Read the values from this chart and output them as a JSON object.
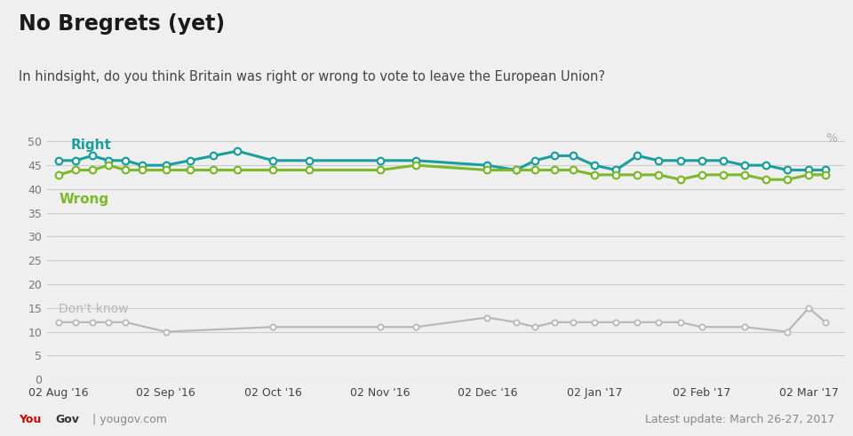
{
  "title": "No Bregrets (yet)",
  "subtitle": "In hindsight, do you think Britain was right or wrong to vote to leave the European Union?",
  "footer_right": "Latest update: March 26-27, 2017",
  "background_color": "#efefef",
  "plot_bg_color": "#efefef",
  "right_color": "#1a9e9e",
  "wrong_color": "#7db82a",
  "dontknow_color": "#b8b8b8",
  "x_labels": [
    "02 Aug '16",
    "02 Sep '16",
    "02 Oct '16",
    "02 Nov '16",
    "02 Dec '16",
    "02 Jan '17",
    "02 Feb '17",
    "02 Mar '17"
  ],
  "x_positions": [
    0,
    4.5,
    9,
    13.5,
    18,
    22.5,
    27,
    31.5
  ],
  "right_x": [
    0,
    0.7,
    1.4,
    2.1,
    2.8,
    3.5,
    4.5,
    5.5,
    6.5,
    7.5,
    9,
    10.5,
    13.5,
    15,
    18,
    19.2,
    20.0,
    20.8,
    21.6,
    22.5,
    23.4,
    24.3,
    25.2,
    26.1,
    27,
    27.9,
    28.8,
    29.7,
    30.6,
    31.5,
    32.2
  ],
  "right_y": [
    46,
    46,
    47,
    46,
    46,
    45,
    45,
    46,
    47,
    48,
    46,
    46,
    46,
    46,
    45,
    44,
    46,
    47,
    47,
    45,
    44,
    47,
    46,
    46,
    46,
    46,
    45,
    45,
    44,
    44,
    44
  ],
  "wrong_x": [
    0,
    0.7,
    1.4,
    2.1,
    2.8,
    3.5,
    4.5,
    5.5,
    6.5,
    7.5,
    9,
    10.5,
    13.5,
    15,
    18,
    19.2,
    20.0,
    20.8,
    21.6,
    22.5,
    23.4,
    24.3,
    25.2,
    26.1,
    27,
    27.9,
    28.8,
    29.7,
    30.6,
    31.5,
    32.2
  ],
  "wrong_y": [
    43,
    44,
    44,
    45,
    44,
    44,
    44,
    44,
    44,
    44,
    44,
    44,
    44,
    45,
    44,
    44,
    44,
    44,
    44,
    43,
    43,
    43,
    43,
    42,
    43,
    43,
    43,
    42,
    42,
    43,
    43
  ],
  "dontknow_x": [
    0,
    0.7,
    1.4,
    2.1,
    2.8,
    4.5,
    9,
    13.5,
    15,
    18,
    19.2,
    20.0,
    20.8,
    21.6,
    22.5,
    23.4,
    24.3,
    25.2,
    26.1,
    27,
    28.8,
    30.6,
    31.5,
    32.2
  ],
  "dontknow_y": [
    12,
    12,
    12,
    12,
    12,
    10,
    11,
    11,
    11,
    13,
    12,
    11,
    12,
    12,
    12,
    12,
    12,
    12,
    12,
    11,
    11,
    10,
    15,
    12
  ],
  "ylim": [
    0,
    55
  ],
  "yticks": [
    0,
    5,
    10,
    15,
    20,
    25,
    30,
    35,
    40,
    45,
    50
  ],
  "xlim": [
    -0.5,
    33.0
  ]
}
